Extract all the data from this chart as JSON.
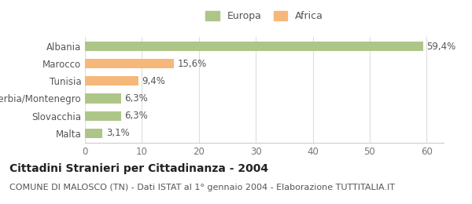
{
  "categories": [
    "Albania",
    "Marocco",
    "Tunisia",
    "Serbia/Montenegro",
    "Slovacchia",
    "Malta"
  ],
  "values": [
    59.4,
    15.6,
    9.4,
    6.3,
    6.3,
    3.1
  ],
  "labels": [
    "59,4%",
    "15,6%",
    "9,4%",
    "6,3%",
    "6,3%",
    "3,1%"
  ],
  "colors": [
    "#adc688",
    "#f5b87a",
    "#f5b87a",
    "#adc688",
    "#adc688",
    "#adc688"
  ],
  "legend_europa_color": "#adc688",
  "legend_africa_color": "#f5b87a",
  "xlim": [
    0,
    63
  ],
  "xticks": [
    0,
    10,
    20,
    30,
    40,
    50,
    60
  ],
  "title_bold": "Cittadini Stranieri per Cittadinanza - 2004",
  "subtitle": "COMUNE DI MALOSCO (TN) - Dati ISTAT al 1° gennaio 2004 - Elaborazione TUTTITALIA.IT",
  "background_color": "#ffffff",
  "bar_height": 0.55,
  "label_fontsize": 8.5,
  "title_fontsize": 10,
  "subtitle_fontsize": 8,
  "ytick_fontsize": 8.5,
  "xtick_fontsize": 8.5
}
